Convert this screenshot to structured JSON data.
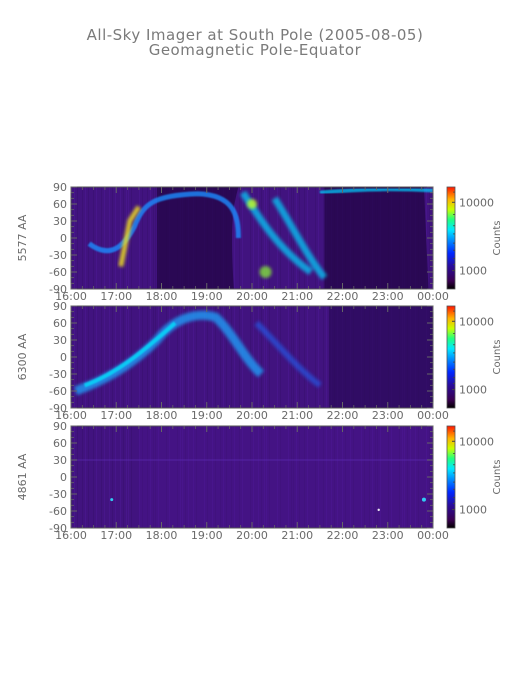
{
  "header": {
    "title": "All-Sky Imager at South Pole (2005-08-05)",
    "subtitle": "Geomagnetic Pole-Equator"
  },
  "chart_data": [
    {
      "type": "heatmap",
      "ylabel": "5577 AA",
      "x_ticks": [
        "16:00",
        "17:00",
        "18:00",
        "19:00",
        "20:00",
        "21:00",
        "22:00",
        "23:00",
        "00:00"
      ],
      "y_ticks": [
        "90",
        "60",
        "30",
        "0",
        "-30",
        "-60",
        "-90"
      ],
      "ylim": [
        -90,
        90
      ],
      "colorbar": {
        "label": "Counts",
        "ticks": [
          "10000",
          "1000"
        ],
        "scale": "log"
      }
    },
    {
      "type": "heatmap",
      "ylabel": "6300 AA",
      "x_ticks": [
        "16:00",
        "17:00",
        "18:00",
        "19:00",
        "20:00",
        "21:00",
        "22:00",
        "23:00",
        "00:00"
      ],
      "y_ticks": [
        "90",
        "60",
        "30",
        "0",
        "-30",
        "-60",
        "-90"
      ],
      "ylim": [
        -90,
        90
      ],
      "colorbar": {
        "label": "Counts",
        "ticks": [
          "10000",
          "1000"
        ],
        "scale": "log"
      }
    },
    {
      "type": "heatmap",
      "ylabel": "4861 AA",
      "x_ticks": [
        "16:00",
        "17:00",
        "18:00",
        "19:00",
        "20:00",
        "21:00",
        "22:00",
        "23:00",
        "00:00"
      ],
      "y_ticks": [
        "90",
        "60",
        "30",
        "0",
        "-30",
        "-60",
        "-90"
      ],
      "ylim": [
        -90,
        90
      ],
      "colorbar": {
        "label": "Counts",
        "ticks": [
          "10000",
          "1000"
        ],
        "scale": "log"
      }
    }
  ]
}
